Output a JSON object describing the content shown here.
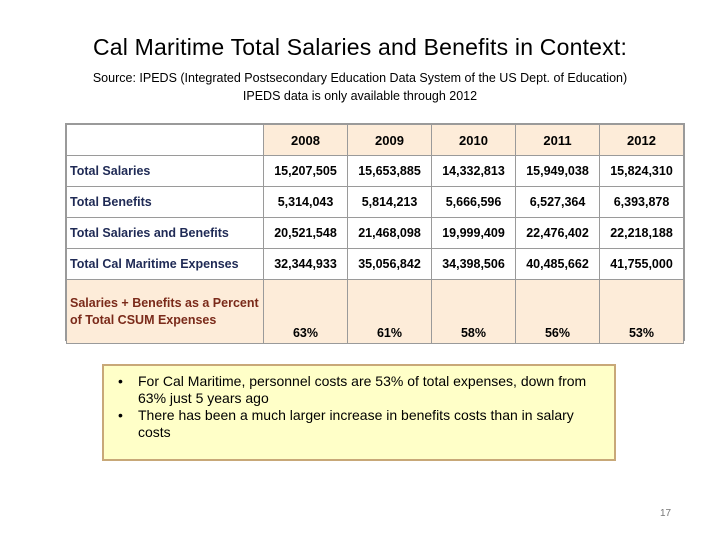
{
  "title": "Cal Maritime Total Salaries and Benefits in Context:",
  "subtitle": {
    "line1": "Source: IPEDS (Integrated Postsecondary Education Data System of the US Dept. of Education)",
    "line2": "IPEDS data is only available through 2012"
  },
  "table": {
    "years": [
      "2008",
      "2009",
      "2010",
      "2011",
      "2012"
    ],
    "rows": [
      {
        "label": "Total Salaries",
        "values": [
          "15,207,505",
          "15,653,885",
          "14,332,813",
          "15,949,038",
          "15,824,310"
        ]
      },
      {
        "label": "Total Benefits",
        "values": [
          "5,314,043",
          "5,814,213",
          "5,666,596",
          "6,527,364",
          "6,393,878"
        ]
      },
      {
        "label": "Total Salaries and Benefits",
        "values": [
          "20,521,548",
          "21,468,098",
          "19,999,409",
          "22,476,402",
          "22,218,188"
        ]
      },
      {
        "label": "Total Cal Maritime Expenses",
        "values": [
          "32,344,933",
          "35,056,842",
          "34,398,506",
          "40,485,662",
          "41,755,000"
        ]
      }
    ],
    "pct_row": {
      "label": "Salaries + Benefits as a Percent of Total CSUM Expenses",
      "values": [
        "63%",
        "61%",
        "58%",
        "56%",
        "53%"
      ]
    }
  },
  "callout": {
    "bullet_glyph": "•",
    "items": [
      "For Cal Maritime, personnel costs are 53% of total expenses, down from 63% just 5 years ago",
      "There has been a much larger increase in benefits costs than in salary costs"
    ]
  },
  "page_number": "17"
}
